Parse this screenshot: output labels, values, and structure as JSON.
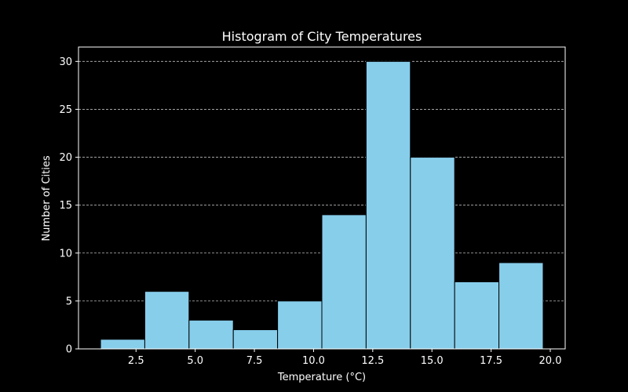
{
  "chart_data": {
    "type": "bar",
    "title": "Histogram of City Temperatures",
    "xlabel": "Temperature (°C)",
    "ylabel": "Number of Cities",
    "bins": [
      {
        "start": 1.0,
        "end": 2.87,
        "count": 1
      },
      {
        "start": 2.87,
        "end": 4.74,
        "count": 6
      },
      {
        "start": 4.74,
        "end": 6.61,
        "count": 3
      },
      {
        "start": 6.61,
        "end": 8.48,
        "count": 2
      },
      {
        "start": 8.48,
        "end": 10.35,
        "count": 5
      },
      {
        "start": 10.35,
        "end": 12.22,
        "count": 14
      },
      {
        "start": 12.22,
        "end": 14.09,
        "count": 30
      },
      {
        "start": 14.09,
        "end": 15.96,
        "count": 20
      },
      {
        "start": 15.96,
        "end": 17.83,
        "count": 7
      },
      {
        "start": 17.83,
        "end": 19.7,
        "count": 9
      }
    ],
    "xlim": [
      0.07,
      20.63
    ],
    "ylim": [
      0,
      31.5
    ],
    "x_ticks": [
      {
        "value": 2.5,
        "label": "2.5"
      },
      {
        "value": 5.0,
        "label": "5.0"
      },
      {
        "value": 7.5,
        "label": "7.5"
      },
      {
        "value": 10.0,
        "label": "10.0"
      },
      {
        "value": 12.5,
        "label": "12.5"
      },
      {
        "value": 15.0,
        "label": "15.0"
      },
      {
        "value": 17.5,
        "label": "17.5"
      },
      {
        "value": 20.0,
        "label": "20.0"
      }
    ],
    "y_ticks": [
      {
        "value": 0,
        "label": "0"
      },
      {
        "value": 5,
        "label": "5"
      },
      {
        "value": 10,
        "label": "10"
      },
      {
        "value": 15,
        "label": "15"
      },
      {
        "value": 20,
        "label": "20"
      },
      {
        "value": 25,
        "label": "25"
      },
      {
        "value": 30,
        "label": "30"
      }
    ],
    "grid": {
      "y": true,
      "x": false,
      "style": "dashed"
    },
    "colors": {
      "background": "#000000",
      "bar_fill": "#87ceeb",
      "bar_edge": "#000000",
      "axis": "#ffffff",
      "grid": "#bbbbbb",
      "text": "#ffffff"
    }
  }
}
